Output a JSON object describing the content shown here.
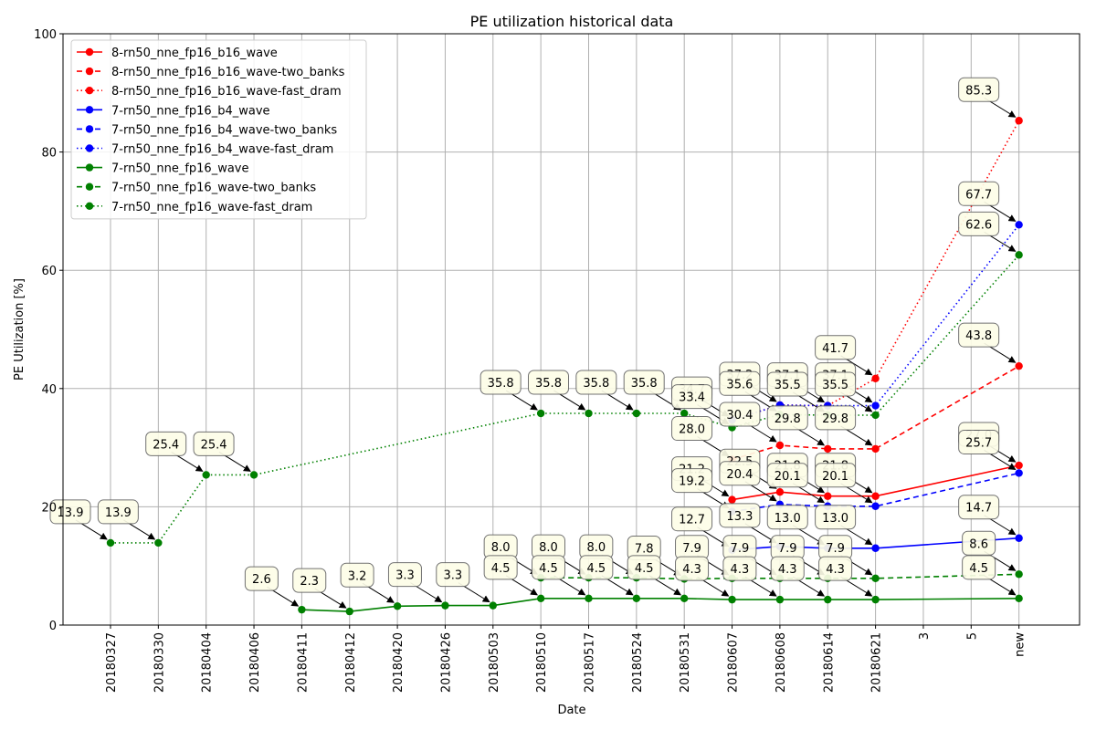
{
  "chart_data": {
    "type": "line",
    "title": "PE utilization historical data",
    "xlabel": "Date",
    "ylabel": "PE Utilization [%]",
    "ylim": [
      0,
      100
    ],
    "yticks": [
      "0",
      "20",
      "40",
      "60",
      "80",
      "100"
    ],
    "categories": [
      "20180327",
      "20180330",
      "20180404",
      "20180406",
      "20180411",
      "20180412",
      "20180420",
      "20180426",
      "20180503",
      "20180510",
      "20180517",
      "20180524",
      "20180531",
      "20180607",
      "20180608",
      "20180614",
      "20180621",
      "3",
      "5",
      "new"
    ],
    "grid": true,
    "legend_position": "top-left",
    "series": [
      {
        "name": "8-rn50_nne_fp16_b16_wave",
        "color": "#ff0000",
        "style": "solid",
        "values": [
          null,
          null,
          null,
          null,
          null,
          null,
          null,
          null,
          null,
          null,
          null,
          null,
          null,
          21.2,
          22.5,
          21.8,
          21.8,
          null,
          null,
          27.0
        ]
      },
      {
        "name": "8-rn50_nne_fp16_b16_wave-two_banks",
        "color": "#ff0000",
        "style": "dashed",
        "values": [
          null,
          null,
          null,
          null,
          null,
          null,
          null,
          null,
          null,
          null,
          null,
          null,
          null,
          28.0,
          30.4,
          29.8,
          29.8,
          null,
          null,
          43.8
        ]
      },
      {
        "name": "8-rn50_nne_fp16_b16_wave-fast_dram",
        "color": "#ff0000",
        "style": "dotted",
        "values": [
          null,
          null,
          null,
          null,
          null,
          null,
          null,
          null,
          null,
          null,
          null,
          null,
          null,
          34.7,
          37.2,
          37.1,
          41.7,
          null,
          null,
          85.3
        ]
      },
      {
        "name": "7-rn50_nne_fp16_b4_wave",
        "color": "#0000ff",
        "style": "solid",
        "values": [
          null,
          null,
          null,
          null,
          null,
          null,
          null,
          null,
          null,
          null,
          null,
          null,
          null,
          12.7,
          13.3,
          13.0,
          13.0,
          null,
          null,
          14.7
        ]
      },
      {
        "name": "7-rn50_nne_fp16_b4_wave-two_banks",
        "color": "#0000ff",
        "style": "dashed",
        "values": [
          null,
          null,
          null,
          null,
          null,
          null,
          null,
          null,
          null,
          null,
          null,
          null,
          null,
          19.2,
          20.4,
          20.1,
          20.1,
          null,
          null,
          25.7
        ]
      },
      {
        "name": "7-rn50_nne_fp16_b4_wave-fast_dram",
        "color": "#0000ff",
        "style": "dotted",
        "values": [
          null,
          null,
          null,
          null,
          null,
          null,
          null,
          null,
          null,
          null,
          null,
          null,
          null,
          34.7,
          37.2,
          37.1,
          37.1,
          null,
          null,
          67.7
        ]
      },
      {
        "name": "7-rn50_nne_fp16_wave",
        "color": "#008000",
        "style": "solid",
        "values": [
          null,
          null,
          null,
          null,
          2.6,
          2.3,
          3.2,
          3.3,
          3.3,
          4.5,
          4.5,
          4.5,
          4.5,
          4.3,
          4.3,
          4.3,
          4.3,
          null,
          null,
          4.5
        ]
      },
      {
        "name": "7-rn50_nne_fp16_wave-two_banks",
        "color": "#008000",
        "style": "dashed",
        "values": [
          null,
          null,
          null,
          null,
          null,
          null,
          null,
          null,
          null,
          8.0,
          8.0,
          8.0,
          7.8,
          7.9,
          7.9,
          7.9,
          7.9,
          null,
          null,
          8.6
        ]
      },
      {
        "name": "7-rn50_nne_fp16_wave-fast_dram",
        "color": "#008000",
        "style": "dotted",
        "values": [
          13.9,
          13.9,
          25.4,
          25.4,
          null,
          null,
          null,
          null,
          null,
          35.8,
          35.8,
          35.8,
          35.8,
          33.4,
          35.6,
          35.5,
          35.5,
          null,
          null,
          62.6
        ]
      }
    ],
    "annotations": [
      {
        "label": "13.9",
        "x": 0,
        "y": 13.9
      },
      {
        "label": "13.9",
        "x": 1,
        "y": 13.9
      },
      {
        "label": "25.4",
        "x": 2,
        "y": 25.4
      },
      {
        "label": "25.4",
        "x": 3,
        "y": 25.4
      },
      {
        "label": "2.6",
        "x": 4,
        "y": 2.6
      },
      {
        "label": "2.3",
        "x": 5,
        "y": 2.3
      },
      {
        "label": "3.2",
        "x": 6,
        "y": 3.2
      },
      {
        "label": "3.3",
        "x": 7,
        "y": 3.3
      },
      {
        "label": "3.3",
        "x": 8,
        "y": 3.3
      },
      {
        "label": "35.8",
        "x": 9,
        "y": 35.8
      },
      {
        "label": "8.0",
        "x": 9,
        "y": 8.0
      },
      {
        "label": "4.5",
        "x": 9,
        "y": 4.5
      },
      {
        "label": "35.8",
        "x": 10,
        "y": 35.8
      },
      {
        "label": "8.0",
        "x": 10,
        "y": 8.0
      },
      {
        "label": "4.5",
        "x": 10,
        "y": 4.5
      },
      {
        "label": "35.8",
        "x": 11,
        "y": 35.8
      },
      {
        "label": "8.0",
        "x": 11,
        "y": 8.0
      },
      {
        "label": "4.5",
        "x": 11,
        "y": 4.5
      },
      {
        "label": "35.8",
        "x": 12,
        "y": 35.8
      },
      {
        "label": "7.8",
        "x": 12,
        "y": 7.8
      },
      {
        "label": "4.5",
        "x": 12,
        "y": 4.5
      },
      {
        "label": "34.7",
        "x": 13,
        "y": 34.7
      },
      {
        "label": "33.4",
        "x": 13,
        "y": 33.4
      },
      {
        "label": "28.0",
        "x": 13,
        "y": 28.0
      },
      {
        "label": "21.2",
        "x": 13,
        "y": 21.2
      },
      {
        "label": "19.2",
        "x": 13,
        "y": 19.2
      },
      {
        "label": "12.7",
        "x": 13,
        "y": 12.7
      },
      {
        "label": "7.9",
        "x": 13,
        "y": 7.9
      },
      {
        "label": "4.3",
        "x": 13,
        "y": 4.3
      },
      {
        "label": "37.2",
        "x": 14,
        "y": 37.2
      },
      {
        "label": "35.6",
        "x": 14,
        "y": 35.6
      },
      {
        "label": "30.4",
        "x": 14,
        "y": 30.4
      },
      {
        "label": "22.5",
        "x": 14,
        "y": 22.5
      },
      {
        "label": "20.4",
        "x": 14,
        "y": 20.4
      },
      {
        "label": "13.3",
        "x": 14,
        "y": 13.3
      },
      {
        "label": "7.9",
        "x": 14,
        "y": 7.9
      },
      {
        "label": "4.3",
        "x": 14,
        "y": 4.3
      },
      {
        "label": "37.1",
        "x": 15,
        "y": 37.1
      },
      {
        "label": "35.5",
        "x": 15,
        "y": 35.5
      },
      {
        "label": "29.8",
        "x": 15,
        "y": 29.8
      },
      {
        "label": "21.8",
        "x": 15,
        "y": 21.8
      },
      {
        "label": "20.1",
        "x": 15,
        "y": 20.1
      },
      {
        "label": "13.0",
        "x": 15,
        "y": 13.0
      },
      {
        "label": "7.9",
        "x": 15,
        "y": 7.9
      },
      {
        "label": "4.3",
        "x": 15,
        "y": 4.3
      },
      {
        "label": "41.7",
        "x": 16,
        "y": 41.7
      },
      {
        "label": "37.1",
        "x": 16,
        "y": 37.1
      },
      {
        "label": "35.5",
        "x": 16,
        "y": 35.5
      },
      {
        "label": "29.8",
        "x": 16,
        "y": 29.8
      },
      {
        "label": "21.8",
        "x": 16,
        "y": 21.8
      },
      {
        "label": "20.1",
        "x": 16,
        "y": 20.1
      },
      {
        "label": "13.0",
        "x": 16,
        "y": 13.0
      },
      {
        "label": "7.9",
        "x": 16,
        "y": 7.9
      },
      {
        "label": "4.3",
        "x": 16,
        "y": 4.3
      },
      {
        "label": "85.3",
        "x": 19,
        "y": 85.3
      },
      {
        "label": "67.7",
        "x": 19,
        "y": 67.7
      },
      {
        "label": "62.6",
        "x": 19,
        "y": 62.6
      },
      {
        "label": "43.8",
        "x": 19,
        "y": 43.8
      },
      {
        "label": "27.0",
        "x": 19,
        "y": 27.0
      },
      {
        "label": "25.7",
        "x": 19,
        "y": 25.7
      },
      {
        "label": "14.7",
        "x": 19,
        "y": 14.7
      },
      {
        "label": "8.6",
        "x": 19,
        "y": 8.6
      },
      {
        "label": "4.5",
        "x": 19,
        "y": 4.5
      }
    ]
  }
}
